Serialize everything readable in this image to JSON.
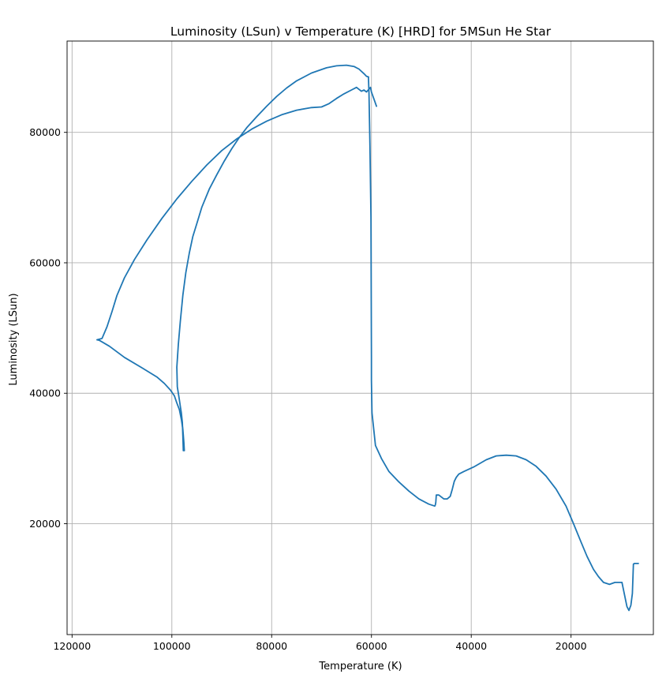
{
  "chart_data": {
    "type": "line",
    "title": "Luminosity (LSun) v Temperature (K) [HRD] for 5MSun He Star",
    "xlabel": "Temperature (K)",
    "ylabel": "Luminosity (LSun)",
    "xlim": [
      121000,
      3500
    ],
    "ylim": [
      3000,
      94000
    ],
    "x_inverted": true,
    "grid": true,
    "xticks": [
      120000,
      100000,
      80000,
      60000,
      40000,
      20000
    ],
    "xtick_labels": [
      "120000",
      "100000",
      "80000",
      "60000",
      "40000",
      "20000"
    ],
    "yticks": [
      20000,
      40000,
      60000,
      80000
    ],
    "ytick_labels": [
      "20000",
      "40000",
      "60000",
      "80000"
    ],
    "series_color": "#1f77b4",
    "series": [
      {
        "x": [
          97500,
          97600,
          97800,
          98100,
          98500,
          99000,
          99500,
          100300,
          101500,
          103000,
          106000,
          109500,
          112500,
          114500,
          115000,
          114000,
          113000,
          112000,
          111000,
          109500,
          107500,
          105000,
          102000,
          99000,
          96000,
          93000,
          90000,
          87000,
          84000,
          81000,
          78000,
          75000,
          72000,
          70000,
          68500,
          67000,
          65500,
          64000,
          63000,
          62500,
          62000,
          61500,
          61000,
          60400,
          60200,
          60000,
          59400,
          59000
        ],
        "y": [
          31200,
          32500,
          34500,
          36000,
          37500,
          38500,
          39600,
          40500,
          41500,
          42500,
          43900,
          45500,
          47200,
          48100,
          48200,
          48400,
          50200,
          52500,
          55000,
          57700,
          60500,
          63500,
          66800,
          69800,
          72500,
          75000,
          77200,
          79000,
          80500,
          81700,
          82700,
          83400,
          83800,
          83900,
          84400,
          85200,
          85900,
          86500,
          86900,
          86600,
          86300,
          86500,
          86200,
          86700,
          86900,
          86200,
          84900,
          84000
        ]
      },
      {
        "x": [
          60600,
          60500,
          60300,
          60100,
          60000,
          60000,
          59900,
          59200,
          58000,
          56500,
          54500,
          52500,
          50500,
          48500,
          47300,
          47200,
          47100,
          47000,
          46500,
          45500,
          44800,
          44200,
          43800,
          43400,
          43000,
          42500,
          41500,
          39500,
          37000,
          35000,
          33000,
          31000,
          29000,
          27000,
          25000,
          23000,
          21000,
          19500,
          18000,
          16800,
          15500,
          14500,
          13500,
          12300,
          11200,
          9800,
          8800,
          8400,
          8000,
          7700,
          7500,
          7300,
          7200,
          6700,
          6500
        ],
        "y": [
          88500,
          86000,
          78000,
          67000,
          45500,
          42000,
          37000,
          32000,
          30000,
          28000,
          26400,
          25000,
          23800,
          23000,
          22700,
          22900,
          23300,
          24400,
          24400,
          23800,
          23800,
          24200,
          25300,
          26500,
          27100,
          27600,
          28000,
          28700,
          29800,
          30400,
          30500,
          30400,
          29800,
          28800,
          27300,
          25300,
          22700,
          20000,
          17200,
          15000,
          13000,
          11900,
          11000,
          10700,
          11000,
          11000,
          7300,
          6700,
          7500,
          9300,
          13800,
          13900,
          13900,
          13900,
          13900
        ]
      },
      {
        "x": [
          97700,
          97800,
          97900,
          98100,
          98300,
          98500,
          98700,
          98900,
          99000,
          98700,
          98300,
          97800,
          97200,
          96500,
          95800,
          95000,
          94000,
          92500,
          91000,
          89500,
          88000,
          86500,
          85000,
          83000,
          81000,
          79000,
          77000,
          75000,
          72000,
          69000,
          67000,
          65000,
          63500,
          62500,
          61500,
          61000,
          60600
        ],
        "y": [
          31200,
          33500,
          35500,
          37000,
          38000,
          39000,
          40000,
          41000,
          44000,
          47500,
          51000,
          55000,
          58500,
          61500,
          64000,
          66000,
          68500,
          71300,
          73500,
          75600,
          77500,
          79200,
          80700,
          82400,
          84000,
          85500,
          86800,
          87900,
          89100,
          89900,
          90200,
          90300,
          90100,
          89700,
          89000,
          88600,
          88500
        ]
      }
    ]
  }
}
